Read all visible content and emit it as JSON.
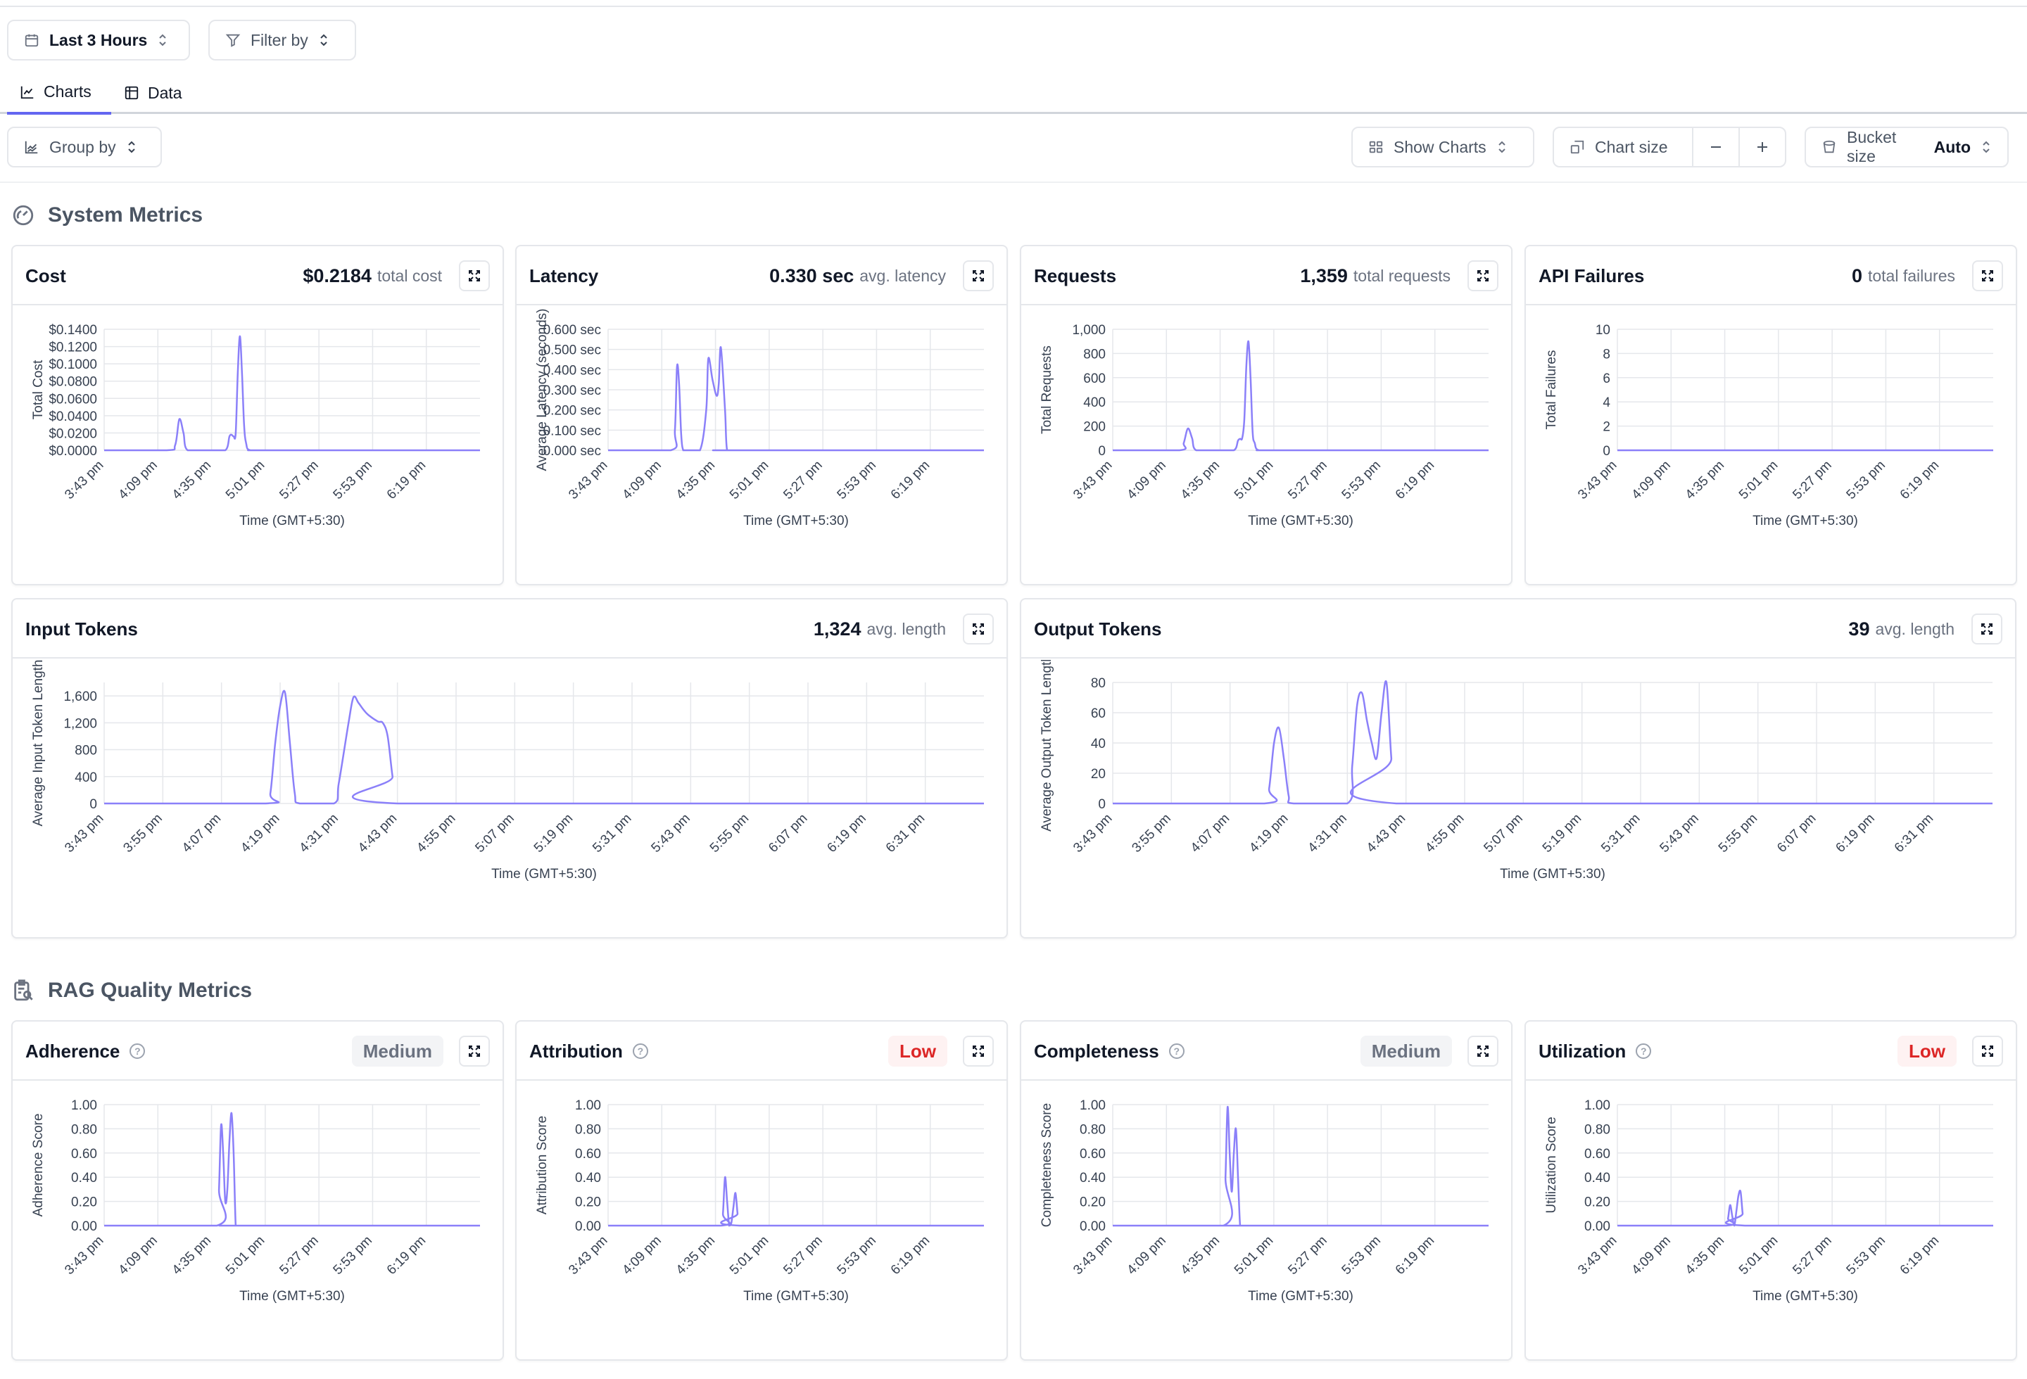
{
  "toolbar": {
    "time_range": "Last 3 Hours",
    "filter_label": "Filter by",
    "group_by_label": "Group by",
    "show_charts_label": "Show Charts",
    "chart_size_label": "Chart size",
    "bucket_size_label": "Bucket size",
    "bucket_size_value": "Auto"
  },
  "tabs": [
    {
      "label": "Charts",
      "active": true
    },
    {
      "label": "Data",
      "active": false
    }
  ],
  "sections": {
    "system": "System Metrics",
    "rag": "RAG Quality Metrics"
  },
  "colors": {
    "accent": "#6366f1",
    "line": "#8b80f9",
    "low": "#dc2626",
    "medium": "#6b7280"
  },
  "cards": {
    "cost": {
      "title": "Cost",
      "value": "$0.2184",
      "label": "total cost"
    },
    "latency": {
      "title": "Latency",
      "value": "0.330 sec",
      "label": "avg. latency"
    },
    "requests": {
      "title": "Requests",
      "value": "1,359",
      "label": "total requests"
    },
    "failures": {
      "title": "API Failures",
      "value": "0",
      "label": "total failures"
    },
    "input_tokens": {
      "title": "Input Tokens",
      "value": "1,324",
      "label": "avg. length"
    },
    "output_tokens": {
      "title": "Output Tokens",
      "value": "39",
      "label": "avg. length"
    },
    "adherence": {
      "title": "Adherence",
      "badge": "Medium"
    },
    "attribution": {
      "title": "Attribution",
      "badge": "Low"
    },
    "completeness": {
      "title": "Completeness",
      "badge": "Medium"
    },
    "utilization": {
      "title": "Utilization",
      "badge": "Low"
    }
  },
  "chart_data": [
    {
      "id": "cost",
      "type": "line",
      "ylabel": "Total Cost",
      "xlabel": "Time (GMT+5:30)",
      "yticks": [
        "$0.0000",
        "$0.0200",
        "$0.0400",
        "$0.0600",
        "$0.0800",
        "$0.1000",
        "$0.1200",
        "$0.1400"
      ],
      "ylim": [
        0,
        0.14
      ],
      "xticks": [
        "3:43 pm",
        "4:09 pm",
        "4:35 pm",
        "5:01 pm",
        "5:27 pm",
        "5:53 pm",
        "6:19 pm"
      ],
      "xlim": [
        0,
        180
      ],
      "x": [
        0,
        30,
        34,
        36,
        38,
        40,
        50,
        58,
        60,
        61,
        62,
        63,
        64,
        65,
        66,
        67,
        68,
        70,
        80,
        180
      ],
      "y": [
        0,
        0,
        0.006,
        0.036,
        0.02,
        0,
        0,
        0,
        0.016,
        0.018,
        0.016,
        0.02,
        0.09,
        0.132,
        0.09,
        0.03,
        0.008,
        0,
        0,
        0
      ]
    },
    {
      "id": "latency",
      "type": "line",
      "ylabel": "Average Latency (seconds)",
      "xlabel": "Time (GMT+5:30)",
      "yticks": [
        "0.000 sec",
        "0.100 sec",
        "0.200 sec",
        "0.300 sec",
        "0.400 sec",
        "0.500 sec",
        "0.600 sec"
      ],
      "ylim": [
        0,
        0.6
      ],
      "xticks": [
        "3:43 pm",
        "4:09 pm",
        "4:35 pm",
        "5:01 pm",
        "5:27 pm",
        "5:53 pm",
        "6:19 pm"
      ],
      "xlim": [
        0,
        180
      ],
      "x": [
        0,
        30,
        32,
        33,
        34,
        35,
        36,
        38,
        44,
        47,
        48,
        50,
        52,
        53,
        54,
        56,
        57,
        60,
        180
      ],
      "y": [
        0,
        0,
        0.1,
        0.415,
        0.33,
        0.08,
        0,
        0,
        0,
        0.2,
        0.455,
        0.35,
        0.27,
        0.33,
        0.51,
        0.2,
        0,
        0,
        0
      ]
    },
    {
      "id": "requests",
      "type": "line",
      "ylabel": "Total Requests",
      "xlabel": "Time (GMT+5:30)",
      "yticks": [
        "0",
        "200",
        "400",
        "600",
        "800",
        "1,000"
      ],
      "ylim": [
        0,
        1000
      ],
      "xticks": [
        "3:43 pm",
        "4:09 pm",
        "4:35 pm",
        "5:01 pm",
        "5:27 pm",
        "5:53 pm",
        "6:19 pm"
      ],
      "xlim": [
        0,
        180
      ],
      "x": [
        0,
        32,
        34,
        36,
        38,
        40,
        50,
        58,
        60,
        61,
        62,
        63,
        64,
        65,
        66,
        67,
        68,
        70,
        80,
        180
      ],
      "y": [
        0,
        0,
        60,
        180,
        100,
        0,
        0,
        0,
        80,
        95,
        100,
        250,
        700,
        900,
        600,
        150,
        60,
        0,
        0,
        0
      ]
    },
    {
      "id": "failures",
      "type": "line",
      "ylabel": "Total Failures",
      "xlabel": "Time (GMT+5:30)",
      "yticks": [
        "0",
        "2",
        "4",
        "6",
        "8",
        "10"
      ],
      "ylim": [
        0,
        10
      ],
      "xticks": [
        "3:43 pm",
        "4:09 pm",
        "4:35 pm",
        "5:01 pm",
        "5:27 pm",
        "5:53 pm",
        "6:19 pm"
      ],
      "xlim": [
        0,
        180
      ],
      "x": [
        0,
        180
      ],
      "y": [
        0,
        0
      ]
    },
    {
      "id": "input_tokens",
      "type": "line",
      "ylabel": "Average Input Token Length",
      "xlabel": "Time (GMT+5:30)",
      "yticks": [
        "0",
        "400",
        "800",
        "1,200",
        "1,600"
      ],
      "ylim": [
        0,
        1800
      ],
      "xticks": [
        "3:43 pm",
        "3:55 pm",
        "4:07 pm",
        "4:19 pm",
        "4:31 pm",
        "4:43 pm",
        "4:55 pm",
        "5:07 pm",
        "5:19 pm",
        "5:31 pm",
        "5:43 pm",
        "5:55 pm",
        "6:07 pm",
        "6:19 pm",
        "6:31 pm"
      ],
      "xlim": [
        0,
        180
      ],
      "x": [
        0,
        33,
        34,
        35,
        36,
        37,
        38,
        39,
        40,
        47,
        48,
        50,
        51,
        52,
        53,
        54,
        56,
        57,
        58,
        59,
        60,
        180
      ],
      "y": [
        0,
        0,
        150,
        900,
        1450,
        1650,
        900,
        150,
        0,
        0,
        300,
        1200,
        1580,
        1500,
        1400,
        1320,
        1220,
        1200,
        1000,
        400,
        0,
        0
      ]
    },
    {
      "id": "output_tokens",
      "type": "line",
      "ylabel": "Average Output Token Length",
      "xlabel": "Time (GMT+5:30)",
      "yticks": [
        "0",
        "20",
        "40",
        "60",
        "80"
      ],
      "ylim": [
        0,
        80
      ],
      "xticks": [
        "3:43 pm",
        "3:55 pm",
        "4:07 pm",
        "4:19 pm",
        "4:31 pm",
        "4:43 pm",
        "4:55 pm",
        "5:07 pm",
        "5:19 pm",
        "5:31 pm",
        "5:43 pm",
        "5:55 pm",
        "6:07 pm",
        "6:19 pm",
        "6:31 pm"
      ],
      "xlim": [
        0,
        180
      ],
      "x": [
        0,
        31,
        32,
        33,
        34,
        35,
        36,
        37,
        48,
        49,
        50,
        51,
        52,
        53,
        54,
        55,
        56,
        57,
        58,
        180
      ],
      "y": [
        0,
        0,
        10,
        40,
        50,
        30,
        5,
        0,
        0,
        25,
        65,
        73,
        55,
        40,
        30,
        60,
        80,
        30,
        0,
        0
      ]
    },
    {
      "id": "adherence",
      "type": "line",
      "ylabel": "Adherence Score",
      "xlabel": "Time (GMT+5:30)",
      "yticks": [
        "0.00",
        "0.20",
        "0.40",
        "0.60",
        "0.80",
        "1.00"
      ],
      "ylim": [
        0,
        1
      ],
      "xticks": [
        "3:43 pm",
        "4:09 pm",
        "4:35 pm",
        "5:01 pm",
        "5:27 pm",
        "5:53 pm",
        "6:19 pm"
      ],
      "xlim": [
        0,
        180
      ],
      "x": [
        0,
        54,
        55,
        56,
        57,
        58,
        59,
        60,
        61,
        62,
        63,
        64,
        180
      ],
      "y": [
        0,
        0,
        0.3,
        0.83,
        0.6,
        0.2,
        0.3,
        0.7,
        0.93,
        0.6,
        0,
        0,
        0
      ]
    },
    {
      "id": "attribution",
      "type": "line",
      "ylabel": "Attribution Score",
      "xlabel": "Time (GMT+5:30)",
      "yticks": [
        "0.00",
        "0.20",
        "0.40",
        "0.60",
        "0.80",
        "1.00"
      ],
      "ylim": [
        0,
        1
      ],
      "xticks": [
        "3:43 pm",
        "4:09 pm",
        "4:35 pm",
        "5:01 pm",
        "5:27 pm",
        "5:53 pm",
        "6:19 pm"
      ],
      "xlim": [
        0,
        180
      ],
      "x": [
        0,
        54,
        55,
        56,
        57,
        58,
        59,
        60,
        61,
        62,
        63,
        180
      ],
      "y": [
        0,
        0,
        0.1,
        0.4,
        0.2,
        0,
        0.02,
        0.15,
        0.27,
        0.1,
        0,
        0
      ]
    },
    {
      "id": "completeness",
      "type": "line",
      "ylabel": "Completeness Score",
      "xlabel": "Time (GMT+5:30)",
      "yticks": [
        "0.00",
        "0.20",
        "0.40",
        "0.60",
        "0.80",
        "1.00"
      ],
      "ylim": [
        0,
        1
      ],
      "xticks": [
        "3:43 pm",
        "4:09 pm",
        "4:35 pm",
        "5:01 pm",
        "5:27 pm",
        "5:53 pm",
        "6:19 pm"
      ],
      "xlim": [
        0,
        180
      ],
      "x": [
        0,
        53,
        54,
        55,
        56,
        57,
        58,
        59,
        60,
        61,
        62,
        180
      ],
      "y": [
        0,
        0,
        0.4,
        0.98,
        0.6,
        0.28,
        0.6,
        0.8,
        0.4,
        0,
        0,
        0
      ]
    },
    {
      "id": "utilization",
      "type": "line",
      "ylabel": "Utilization Score",
      "xlabel": "Time (GMT+5:30)",
      "yticks": [
        "0.00",
        "0.20",
        "0.40",
        "0.60",
        "0.80",
        "1.00"
      ],
      "ylim": [
        0,
        1
      ],
      "xticks": [
        "3:43 pm",
        "4:09 pm",
        "4:35 pm",
        "5:01 pm",
        "5:27 pm",
        "5:53 pm",
        "6:19 pm"
      ],
      "xlim": [
        0,
        180
      ],
      "x": [
        0,
        52,
        53,
        54,
        55,
        56,
        57,
        58,
        59,
        60,
        61,
        180
      ],
      "y": [
        0,
        0,
        0.06,
        0.17,
        0.08,
        0,
        0.12,
        0.25,
        0.28,
        0.1,
        0,
        0
      ]
    }
  ]
}
